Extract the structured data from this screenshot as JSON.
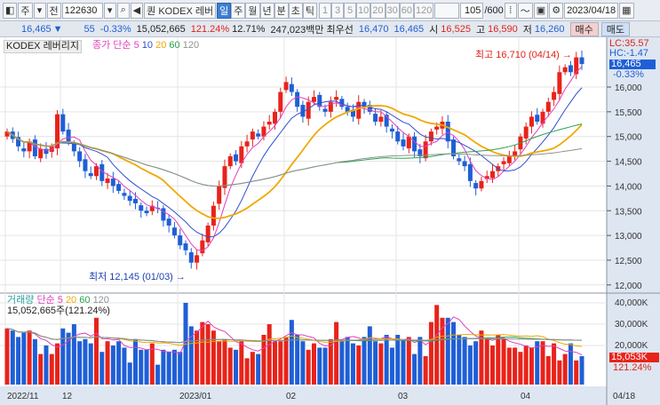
{
  "toolbar": {
    "icon": "panel-icon",
    "period": "주",
    "prev": "전",
    "code": "122630",
    "name": "KODEX 레버",
    "name_prefix": "퀀",
    "intervals": [
      {
        "label": "일",
        "selected": true
      },
      {
        "label": "주"
      },
      {
        "label": "월"
      },
      {
        "label": "년"
      },
      {
        "label": "분"
      },
      {
        "label": "초"
      },
      {
        "label": "틱"
      }
    ],
    "counts": [
      "1",
      "3",
      "5",
      "10",
      "20",
      "30",
      "60",
      "120"
    ],
    "range": "105",
    "range_total": "/600",
    "date": "2023/04/18"
  },
  "quote": {
    "price": "16,465",
    "arrow": "▼",
    "change": "55",
    "change_pct": "-0.33%",
    "volume": "15,052,665",
    "vol_ratio": "121.24%",
    "turnover": "12.71%",
    "amount": "247,023백만",
    "best_label": "최우선",
    "ask": "16,470",
    "bid": "16,465",
    "open_label": "시",
    "open": "16,525",
    "high_label": "고",
    "high": "16,590",
    "low_label": "저",
    "low": "16,260",
    "buy": "매수",
    "sell": "매도"
  },
  "legend": {
    "title": "KODEX 레버리지",
    "ma_label": "종가 단순",
    "ma": [
      "5",
      "10",
      "20",
      "60",
      "120"
    ]
  },
  "vol_legend": {
    "title": "거래량",
    "ma_label": "단순",
    "ma": [
      "5",
      "20",
      "60",
      "120"
    ],
    "value": "15,052,665주(121.24%)"
  },
  "annotations": {
    "high": "최고 16,710 (04/14)",
    "low": "최저 12,145 (01/03)",
    "lc": "LC:35.57",
    "hc": "HC:-1.47",
    "last": "16,465",
    "last_pct": "-0.33%",
    "vol_last": "15,053K",
    "vol_pct": "121.24%"
  },
  "colors": {
    "up": "#e8231a",
    "down": "#1f5fd6",
    "ma5": "#e040c0",
    "ma10": "#2f4fd0",
    "ma20": "#f0a800",
    "ma60": "#2ca050",
    "ma120": "#909090"
  },
  "chart_data": {
    "type": "candlestick",
    "y_ticks": [
      "12,000",
      "12,500",
      "13,000",
      "13,500",
      "14,000",
      "14,500",
      "15,000",
      "15,500",
      "16,000"
    ],
    "vol_ticks": [
      "20,000K",
      "30,000K",
      "40,000K"
    ],
    "x_labels": [
      "2022/11",
      "12",
      "2023/01",
      "02",
      "03",
      "04",
      "04/18"
    ],
    "close": [
      15100,
      14950,
      14800,
      14700,
      14900,
      14600,
      14750,
      14650,
      14800,
      15450,
      15100,
      14900,
      14700,
      14500,
      14300,
      14200,
      14400,
      14100,
      14150,
      14000,
      13900,
      13800,
      13700,
      13650,
      13500,
      13450,
      13600,
      13550,
      13300,
      13200,
      13000,
      12800,
      12700,
      12450,
      12600,
      12900,
      13200,
      13600,
      14000,
      14400,
      14600,
      14500,
      14800,
      14900,
      15100,
      15000,
      15200,
      15300,
      15500,
      15900,
      16100,
      15900,
      15600,
      15400,
      15700,
      15800,
      15600,
      15500,
      15700,
      15800,
      15600,
      15500,
      15400,
      15700,
      15600,
      15500,
      15300,
      15400,
      15200,
      15100,
      14900,
      14800,
      15000,
      14700,
      14600,
      14900,
      15100,
      15200,
      15300,
      14900,
      14600,
      14500,
      14400,
      14100,
      13950,
      14100,
      14200,
      14300,
      14400,
      14500,
      14600,
      14700,
      15000,
      15200,
      15400,
      15300,
      15500,
      15700,
      15900,
      16300,
      16400,
      16300,
      16600,
      16465
    ],
    "volume_k": [
      28,
      27,
      24,
      26,
      27,
      23,
      16,
      20,
      16,
      21,
      28,
      26,
      30,
      22,
      23,
      21,
      33,
      17,
      22,
      20,
      22,
      19,
      12,
      23,
      18,
      18,
      21,
      11,
      18,
      17,
      18,
      17,
      40,
      29,
      27,
      31,
      30,
      27,
      22,
      23,
      19,
      18,
      22,
      14,
      17,
      16,
      25,
      30,
      22,
      22,
      24,
      32,
      25,
      22,
      18,
      21,
      19,
      19,
      23,
      31,
      22,
      24,
      21,
      20,
      24,
      29,
      22,
      21,
      25,
      19,
      25,
      23,
      24,
      16,
      24,
      15,
      31,
      39,
      33,
      33,
      31,
      25,
      24,
      20,
      22,
      27,
      23,
      20,
      25,
      23,
      19,
      19,
      17,
      20,
      19,
      22,
      22,
      15,
      21,
      13,
      16,
      21,
      13,
      15
    ]
  }
}
